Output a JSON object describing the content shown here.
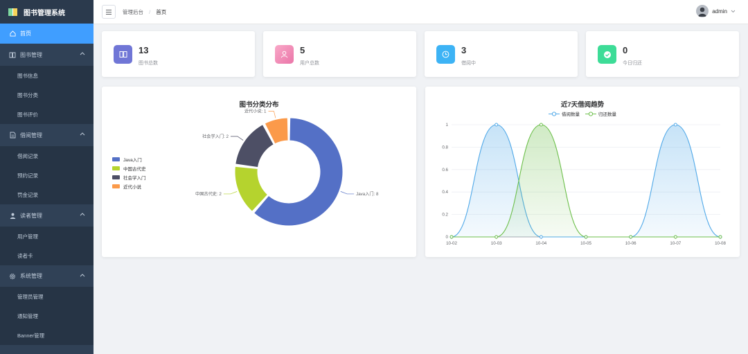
{
  "app": {
    "title": "图书管理系统"
  },
  "sidebar": {
    "home": "首页",
    "groups": [
      {
        "label": "图书管理",
        "icon": "book-icon",
        "items": [
          "图书信息",
          "图书分类",
          "图书评价"
        ]
      },
      {
        "label": "借阅管理",
        "icon": "document-icon",
        "items": [
          "借阅记录",
          "预约记录",
          "罚金记录"
        ]
      },
      {
        "label": "读者管理",
        "icon": "user-icon",
        "items": [
          "用户管理",
          "读者卡"
        ]
      },
      {
        "label": "系统管理",
        "icon": "gear-icon",
        "items": [
          "管理员管理",
          "通知管理",
          "Banner管理"
        ]
      }
    ]
  },
  "topbar": {
    "breadcrumb": [
      "管理后台",
      "首页"
    ],
    "user": "admin"
  },
  "stats": [
    {
      "value": "13",
      "label": "图书总数",
      "color": "#7076d6",
      "icon": "book-icon"
    },
    {
      "value": "5",
      "label": "用户总数",
      "color": "#f58cb6",
      "icon": "user-icon"
    },
    {
      "value": "3",
      "label": "借阅中",
      "color": "#3db3f5",
      "icon": "clock-icon"
    },
    {
      "value": "0",
      "label": "今日归还",
      "color": "#3ddc97",
      "icon": "check-icon"
    }
  ],
  "chart_data": [
    {
      "type": "pie",
      "title": "图书分类分布",
      "categories": [
        "Java入门",
        "中国古代史",
        "社会学入门",
        "近代小说"
      ],
      "values": [
        8,
        2,
        2,
        1
      ],
      "colors": [
        "#5470c6",
        "#b5d32e",
        "#4d4f65",
        "#fb9a4a"
      ],
      "data_labels": [
        "Java入门: 8",
        "中国古代史: 2",
        "社会学入门: 2",
        "近代小说: 1"
      ],
      "legend_position": "left"
    },
    {
      "type": "area",
      "title": "近7天借阅趋势",
      "categories": [
        "10-02",
        "10-03",
        "10-04",
        "10-05",
        "10-06",
        "10-07",
        "10-08"
      ],
      "series": [
        {
          "name": "借阅数量",
          "values": [
            0,
            1,
            0,
            0,
            0,
            1,
            0
          ],
          "color": "#4fa8e8"
        },
        {
          "name": "归还数量",
          "values": [
            0,
            0,
            1,
            0,
            0,
            0,
            0
          ],
          "color": "#6cbf4a"
        }
      ],
      "yticks": [
        "0",
        "0.2",
        "0.4",
        "0.6",
        "0.8",
        "1"
      ],
      "ylim": [
        0,
        1
      ],
      "legend_position": "top"
    }
  ]
}
